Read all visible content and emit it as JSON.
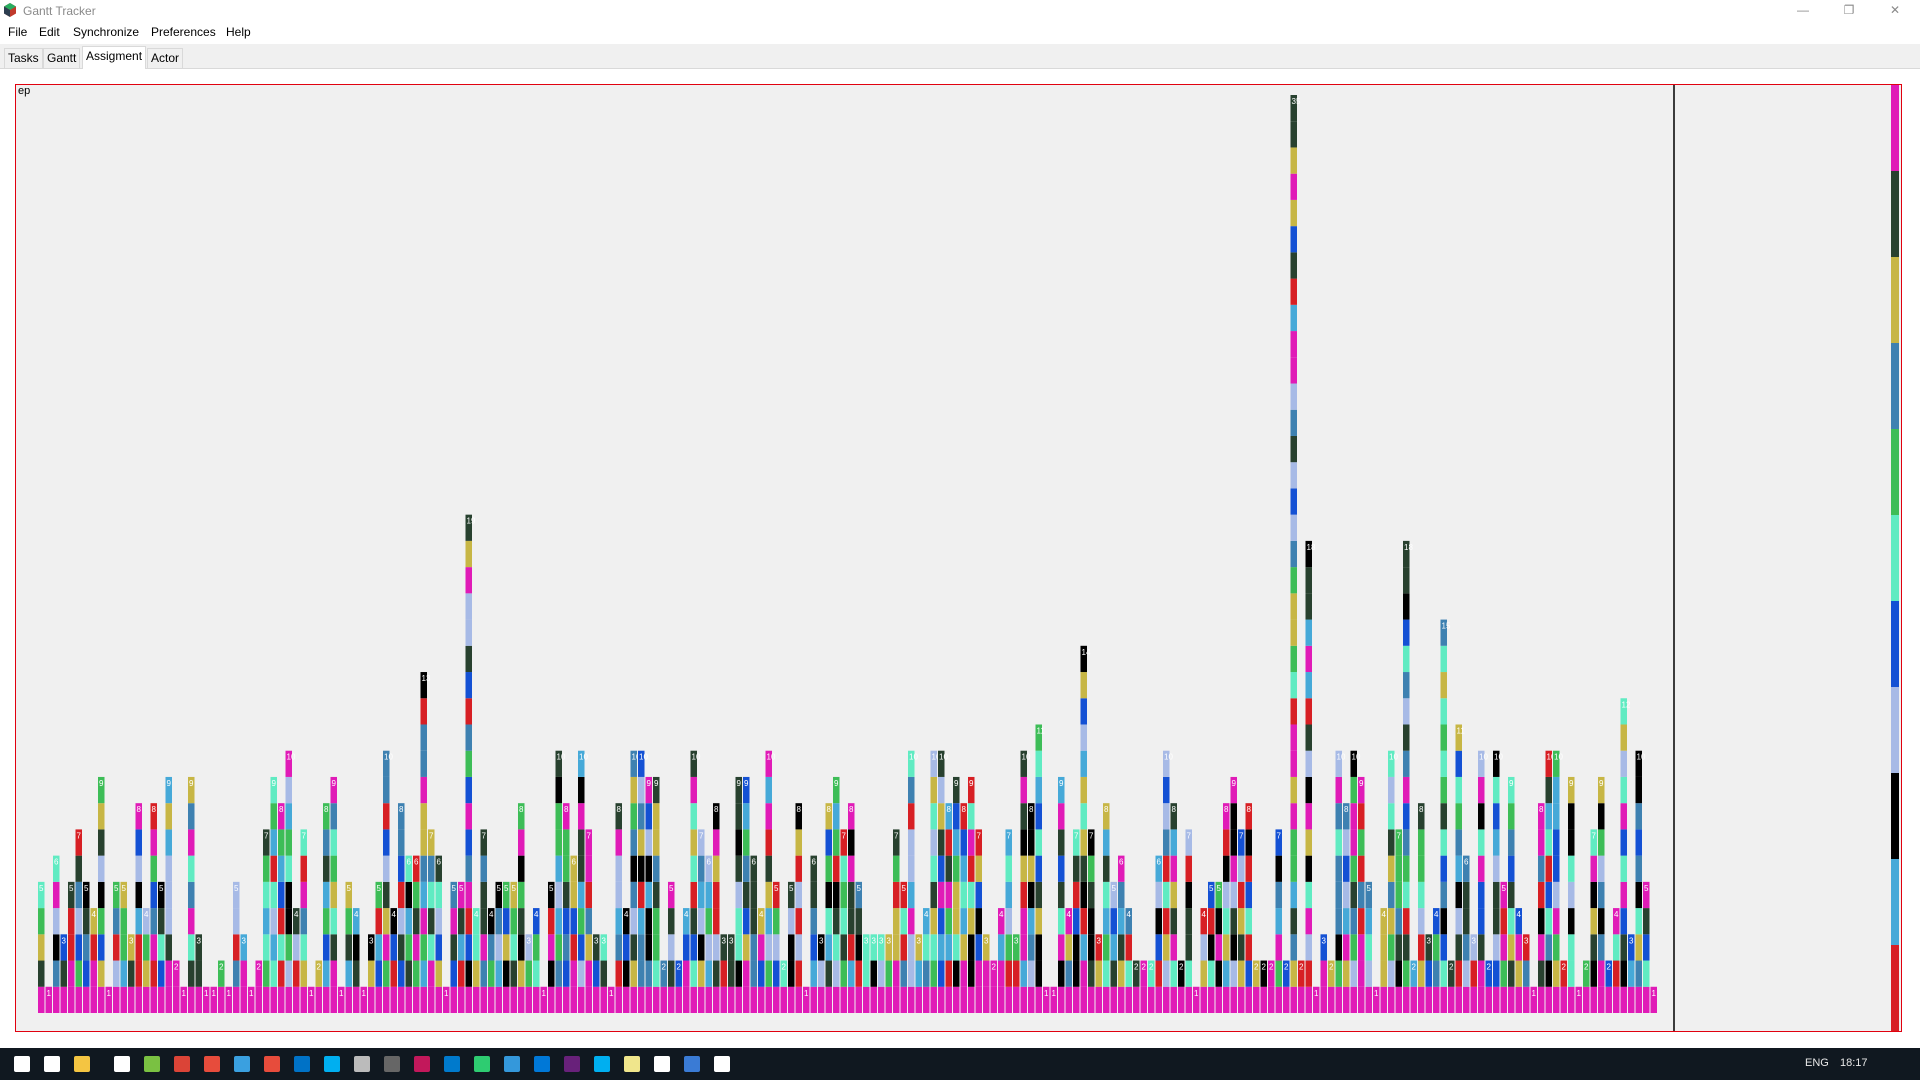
{
  "window": {
    "title": "Gantt Tracker",
    "controls": {
      "minimize": "—",
      "maximize": "❐",
      "close": "✕"
    }
  },
  "menu": [
    "File",
    "Edit",
    "Synchronize",
    "Preferences",
    "Help"
  ],
  "tabs": [
    {
      "label": "Tasks",
      "active": false
    },
    {
      "label": "Gantt",
      "active": false
    },
    {
      "label": "Assigment",
      "active": true
    },
    {
      "label": "Actor",
      "active": false
    }
  ],
  "chart_data": {
    "type": "bar",
    "subtype": "stacked-bar",
    "title": "",
    "corner_label": "ep",
    "grid": false,
    "legend": "none",
    "bar_count": 220,
    "ylim": [
      0,
      35
    ],
    "palette": [
      "#e01bb7",
      "#28412f",
      "#c7b645",
      "#3e81b1",
      "#3dbd57",
      "#60ebc2",
      "#1451d4",
      "#a7bae6",
      "#000000",
      "#46a9d8",
      "#d71f24"
    ],
    "notes": "Stacked bars of task assignments per time step; most bars have a magenta base and colored stacked segments with small white count labels; the tallest bar reaches about 35."
  },
  "taskbar": {
    "icons": [
      "start-icon",
      "search-icon",
      "file-explorer-icon",
      "store-icon",
      "app-icon",
      "chrome-icon",
      "app-icon",
      "network-icon",
      "app-icon",
      "outlook-icon",
      "skype-icon",
      "settings-icon",
      "gantt-icon",
      "app-icon",
      "vscode-icon",
      "app-icon",
      "app-icon",
      "edge-icon",
      "visual-studio-icon",
      "skype-icon",
      "notepad-icon",
      "app-icon",
      "powershell-icon",
      "app-icon"
    ],
    "lang": "ENG",
    "time": "18:17"
  }
}
